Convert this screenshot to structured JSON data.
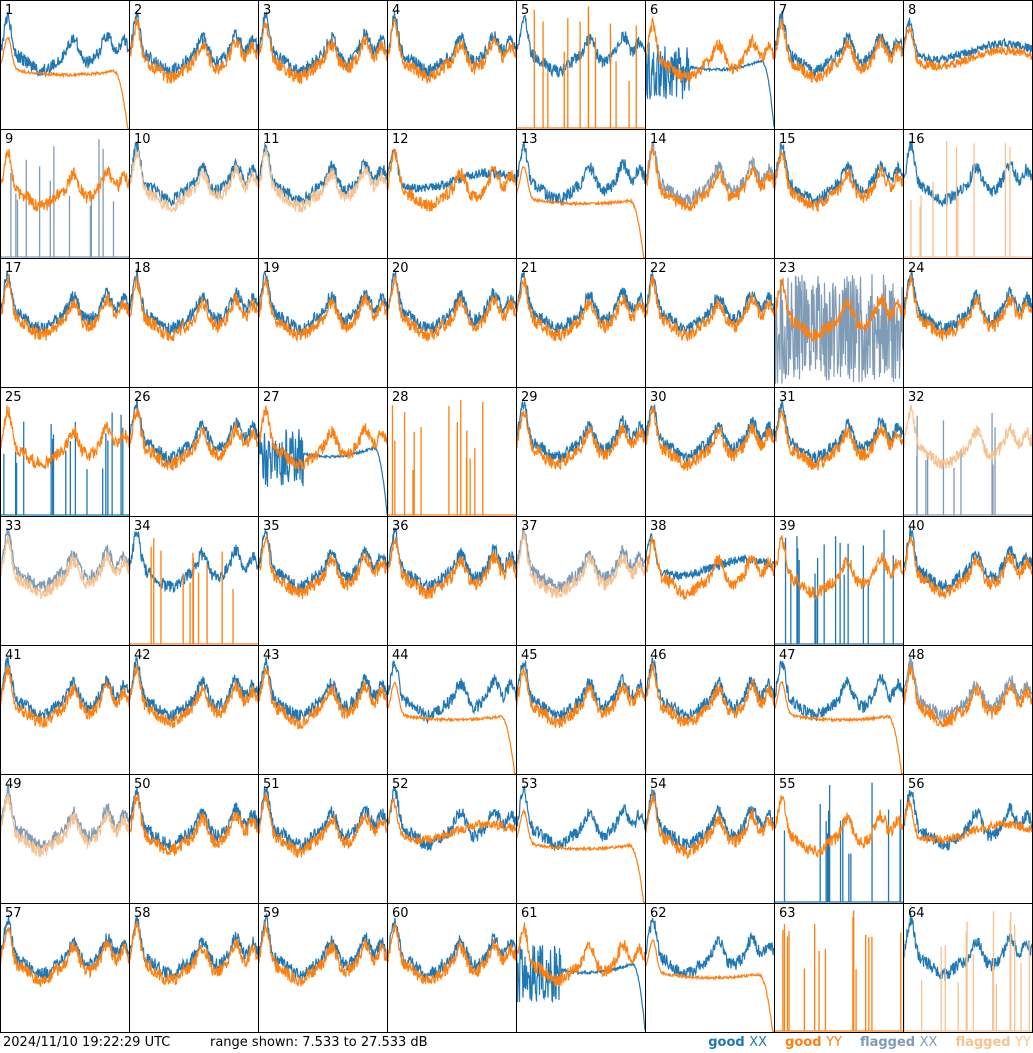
{
  "footer": {
    "timestamp": "2024/11/10 19:22:29 UTC",
    "range_text": "range shown: 7.533 to 27.533 dB"
  },
  "legend": [
    {
      "state": "good",
      "pol": "XX",
      "color": "#1f77b4"
    },
    {
      "state": "good",
      "pol": "YY",
      "color": "#ff7f0e"
    },
    {
      "state": "flagged",
      "pol": "XX",
      "color": "#7f9bb5"
    },
    {
      "state": "flagged",
      "pol": "YY",
      "color": "#f7c28f"
    }
  ],
  "chart_data": {
    "type": "line",
    "grid": {
      "rows": 8,
      "cols": 8
    },
    "ylim": [
      7.533,
      27.533
    ],
    "yunit": "dB",
    "series_colors": {
      "good_xx": "#1f77b4",
      "good_yy": "#ff7f0e",
      "flagged_xx": "#7f9bb5",
      "flagged_yy": "#f7c28f"
    },
    "panels": [
      {
        "label": "1",
        "xx": "good",
        "yy": "good",
        "xx_shape": "norm",
        "yy_shape": "plateau"
      },
      {
        "label": "2",
        "xx": "good",
        "yy": "good",
        "xx_shape": "norm",
        "yy_shape": "norm"
      },
      {
        "label": "3",
        "xx": "good",
        "yy": "good",
        "xx_shape": "norm",
        "yy_shape": "norm"
      },
      {
        "label": "4",
        "xx": "good",
        "yy": "good",
        "xx_shape": "norm",
        "yy_shape": "norm"
      },
      {
        "label": "5",
        "xx": "good",
        "yy": "good",
        "xx_shape": "norm",
        "yy_shape": "spikes"
      },
      {
        "label": "6",
        "xx": "good",
        "yy": "good",
        "xx_shape": "hump",
        "yy_shape": "norm"
      },
      {
        "label": "7",
        "xx": "good",
        "yy": "good",
        "xx_shape": "norm",
        "yy_shape": "norm"
      },
      {
        "label": "8",
        "xx": "good",
        "yy": "good",
        "xx_shape": "flat",
        "yy_shape": "flat"
      },
      {
        "label": "9",
        "xx": "flagged",
        "yy": "good",
        "xx_shape": "spikes",
        "yy_shape": "norm"
      },
      {
        "label": "10",
        "xx": "good",
        "yy": "flagged",
        "xx_shape": "norm",
        "yy_shape": "norm"
      },
      {
        "label": "11",
        "xx": "good",
        "yy": "flagged",
        "xx_shape": "norm",
        "yy_shape": "norm"
      },
      {
        "label": "12",
        "xx": "good",
        "yy": "good",
        "xx_shape": "flat",
        "yy_shape": "norm"
      },
      {
        "label": "13",
        "xx": "good",
        "yy": "good",
        "xx_shape": "norm",
        "yy_shape": "plateau"
      },
      {
        "label": "14",
        "xx": "flagged",
        "yy": "good",
        "xx_shape": "norm",
        "yy_shape": "norm"
      },
      {
        "label": "15",
        "xx": "good",
        "yy": "good",
        "xx_shape": "norm",
        "yy_shape": "norm"
      },
      {
        "label": "16",
        "xx": "good",
        "yy": "flagged",
        "xx_shape": "norm",
        "yy_shape": "spikes"
      },
      {
        "label": "17",
        "xx": "good",
        "yy": "good",
        "xx_shape": "norm",
        "yy_shape": "norm"
      },
      {
        "label": "18",
        "xx": "good",
        "yy": "good",
        "xx_shape": "norm",
        "yy_shape": "norm"
      },
      {
        "label": "19",
        "xx": "good",
        "yy": "good",
        "xx_shape": "norm",
        "yy_shape": "norm"
      },
      {
        "label": "20",
        "xx": "good",
        "yy": "good",
        "xx_shape": "norm",
        "yy_shape": "norm"
      },
      {
        "label": "21",
        "xx": "good",
        "yy": "good",
        "xx_shape": "norm",
        "yy_shape": "norm"
      },
      {
        "label": "22",
        "xx": "good",
        "yy": "good",
        "xx_shape": "norm",
        "yy_shape": "norm"
      },
      {
        "label": "23",
        "xx": "flagged",
        "yy": "good",
        "xx_shape": "noisy",
        "yy_shape": "norm"
      },
      {
        "label": "24",
        "xx": "good",
        "yy": "good",
        "xx_shape": "norm",
        "yy_shape": "norm"
      },
      {
        "label": "25",
        "xx": "good",
        "yy": "good",
        "xx_shape": "spikes",
        "yy_shape": "norm"
      },
      {
        "label": "26",
        "xx": "good",
        "yy": "good",
        "xx_shape": "norm",
        "yy_shape": "norm"
      },
      {
        "label": "27",
        "xx": "good",
        "yy": "good",
        "xx_shape": "hump",
        "yy_shape": "norm"
      },
      {
        "label": "28",
        "xx": "good",
        "yy": "good",
        "xx_shape": "none",
        "yy_shape": "spikes"
      },
      {
        "label": "29",
        "xx": "good",
        "yy": "good",
        "xx_shape": "norm",
        "yy_shape": "norm"
      },
      {
        "label": "30",
        "xx": "good",
        "yy": "good",
        "xx_shape": "norm",
        "yy_shape": "norm"
      },
      {
        "label": "31",
        "xx": "good",
        "yy": "good",
        "xx_shape": "norm",
        "yy_shape": "norm"
      },
      {
        "label": "32",
        "xx": "flagged",
        "yy": "flagged",
        "xx_shape": "spikes",
        "yy_shape": "norm"
      },
      {
        "label": "33",
        "xx": "flagged",
        "yy": "flagged",
        "xx_shape": "norm",
        "yy_shape": "norm"
      },
      {
        "label": "34",
        "xx": "good",
        "yy": "good",
        "xx_shape": "norm",
        "yy_shape": "spikes"
      },
      {
        "label": "35",
        "xx": "good",
        "yy": "good",
        "xx_shape": "norm",
        "yy_shape": "norm"
      },
      {
        "label": "36",
        "xx": "good",
        "yy": "good",
        "xx_shape": "norm",
        "yy_shape": "norm"
      },
      {
        "label": "37",
        "xx": "flagged",
        "yy": "flagged",
        "xx_shape": "norm",
        "yy_shape": "norm"
      },
      {
        "label": "38",
        "xx": "good",
        "yy": "good",
        "xx_shape": "flat",
        "yy_shape": "norm"
      },
      {
        "label": "39",
        "xx": "good",
        "yy": "good",
        "xx_shape": "spikes",
        "yy_shape": "norm"
      },
      {
        "label": "40",
        "xx": "good",
        "yy": "good",
        "xx_shape": "norm",
        "yy_shape": "norm"
      },
      {
        "label": "41",
        "xx": "good",
        "yy": "good",
        "xx_shape": "norm",
        "yy_shape": "norm"
      },
      {
        "label": "42",
        "xx": "good",
        "yy": "good",
        "xx_shape": "norm",
        "yy_shape": "norm"
      },
      {
        "label": "43",
        "xx": "good",
        "yy": "good",
        "xx_shape": "norm",
        "yy_shape": "norm"
      },
      {
        "label": "44",
        "xx": "good",
        "yy": "good",
        "xx_shape": "norm",
        "yy_shape": "plateau"
      },
      {
        "label": "45",
        "xx": "good",
        "yy": "good",
        "xx_shape": "norm",
        "yy_shape": "norm"
      },
      {
        "label": "46",
        "xx": "good",
        "yy": "good",
        "xx_shape": "norm",
        "yy_shape": "norm"
      },
      {
        "label": "47",
        "xx": "good",
        "yy": "good",
        "xx_shape": "norm",
        "yy_shape": "plateau"
      },
      {
        "label": "48",
        "xx": "flagged",
        "yy": "good",
        "xx_shape": "norm",
        "yy_shape": "norm"
      },
      {
        "label": "49",
        "xx": "flagged",
        "yy": "flagged",
        "xx_shape": "norm",
        "yy_shape": "norm"
      },
      {
        "label": "50",
        "xx": "good",
        "yy": "good",
        "xx_shape": "norm",
        "yy_shape": "norm"
      },
      {
        "label": "51",
        "xx": "good",
        "yy": "good",
        "xx_shape": "norm",
        "yy_shape": "norm"
      },
      {
        "label": "52",
        "xx": "good",
        "yy": "good",
        "xx_shape": "norm",
        "yy_shape": "flat"
      },
      {
        "label": "53",
        "xx": "good",
        "yy": "good",
        "xx_shape": "norm",
        "yy_shape": "plateau"
      },
      {
        "label": "54",
        "xx": "good",
        "yy": "good",
        "xx_shape": "norm",
        "yy_shape": "norm"
      },
      {
        "label": "55",
        "xx": "good",
        "yy": "good",
        "xx_shape": "spikes",
        "yy_shape": "norm"
      },
      {
        "label": "56",
        "xx": "good",
        "yy": "good",
        "xx_shape": "norm",
        "yy_shape": "flat"
      },
      {
        "label": "57",
        "xx": "good",
        "yy": "good",
        "xx_shape": "norm",
        "yy_shape": "norm"
      },
      {
        "label": "58",
        "xx": "good",
        "yy": "good",
        "xx_shape": "norm",
        "yy_shape": "norm"
      },
      {
        "label": "59",
        "xx": "good",
        "yy": "good",
        "xx_shape": "norm",
        "yy_shape": "norm"
      },
      {
        "label": "60",
        "xx": "good",
        "yy": "good",
        "xx_shape": "norm",
        "yy_shape": "norm"
      },
      {
        "label": "61",
        "xx": "good",
        "yy": "good",
        "xx_shape": "hump",
        "yy_shape": "norm"
      },
      {
        "label": "62",
        "xx": "good",
        "yy": "good",
        "xx_shape": "norm",
        "yy_shape": "plateau"
      },
      {
        "label": "63",
        "xx": "good",
        "yy": "good",
        "xx_shape": "none",
        "yy_shape": "spikes"
      },
      {
        "label": "64",
        "xx": "good",
        "yy": "flagged",
        "xx_shape": "norm",
        "yy_shape": "spikes"
      }
    ]
  }
}
